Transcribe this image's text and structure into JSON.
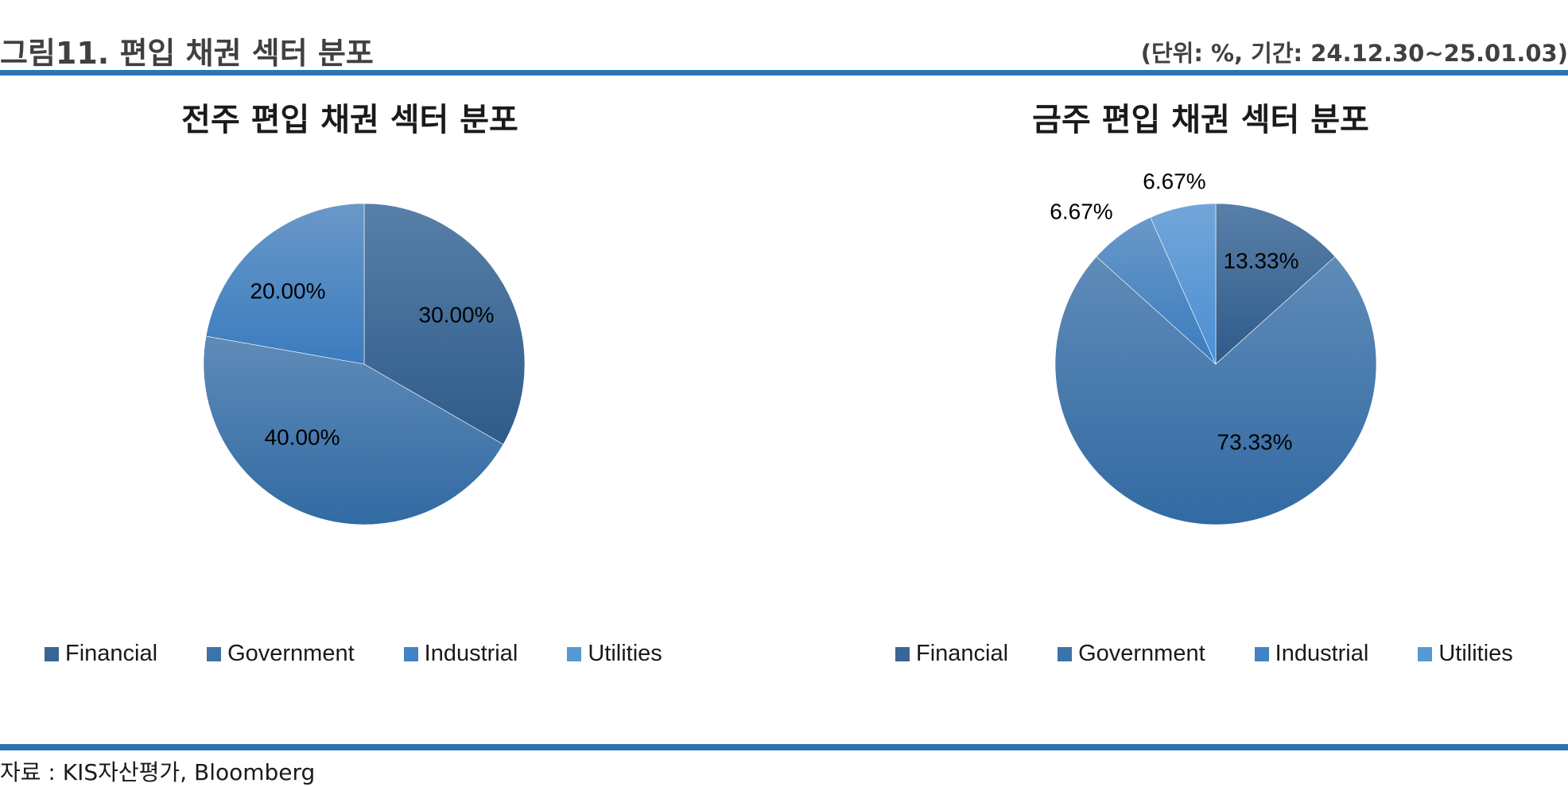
{
  "header": {
    "figure_title": "그림11. 편입 채권 섹터 분포",
    "unit_note": "(단위: %, 기간: 24.12.30~25.01.03)"
  },
  "footer": {
    "source": "자료 : KIS자산평가, Bloomberg"
  },
  "colors": {
    "accent_rule": "#2e74b5",
    "Financial": "#3a6595",
    "Government": "#3b73ab",
    "Industrial": "#4183c4",
    "Utilities": "#5599d6"
  },
  "chart_data": [
    {
      "type": "pie",
      "title": "전주 편입 채권 섹터 분포",
      "legend_position": "bottom",
      "categories": [
        "Financial",
        "Government",
        "Industrial",
        "Utilities"
      ],
      "values": [
        30.0,
        40.0,
        20.0,
        0.0
      ],
      "labels": [
        "30.00%",
        "40.00%",
        "20.00%",
        ""
      ]
    },
    {
      "type": "pie",
      "title": "금주 편입 채권 섹터 분포",
      "legend_position": "bottom",
      "categories": [
        "Financial",
        "Government",
        "Industrial",
        "Utilities"
      ],
      "values": [
        13.33,
        73.33,
        6.67,
        6.67
      ],
      "labels": [
        "13.33%",
        "73.33%",
        "6.67%",
        "6.67%"
      ]
    }
  ]
}
